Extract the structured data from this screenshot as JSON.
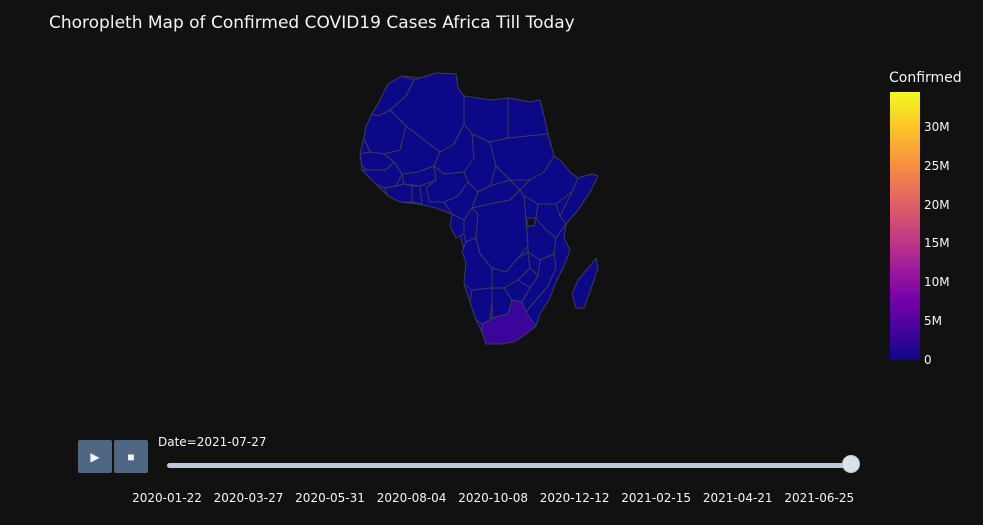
{
  "title": "Choropleth Map of Confirmed COVID19 Cases Africa Till Today",
  "colors": {
    "background": "#111111",
    "country_default": "#0d0887",
    "country_border": "#3a3a5a",
    "country_south_africa": "#3b049a",
    "button": "#506784",
    "slider_track": "#bec8d9"
  },
  "colorbar": {
    "title": "Confirmed",
    "ticks": [
      {
        "label": "0",
        "value": 0
      },
      {
        "label": "5M",
        "value": 5000000
      },
      {
        "label": "10M",
        "value": 10000000
      },
      {
        "label": "15M",
        "value": 15000000
      },
      {
        "label": "20M",
        "value": 20000000
      },
      {
        "label": "25M",
        "value": 25000000
      },
      {
        "label": "30M",
        "value": 30000000
      }
    ],
    "max": 34500000
  },
  "controls": {
    "play_icon": "play-icon",
    "play_glyph": "▶",
    "stop_icon": "stop-icon",
    "stop_glyph": "■"
  },
  "slider": {
    "label": "Date=2021-07-27",
    "value_fraction": 1.0,
    "steps": [
      "2020-01-22",
      "2020-03-27",
      "2020-05-31",
      "2020-08-04",
      "2020-10-08",
      "2020-12-12",
      "2021-02-15",
      "2021-04-21",
      "2021-06-25"
    ],
    "steps_fraction_end": 0.948
  }
}
